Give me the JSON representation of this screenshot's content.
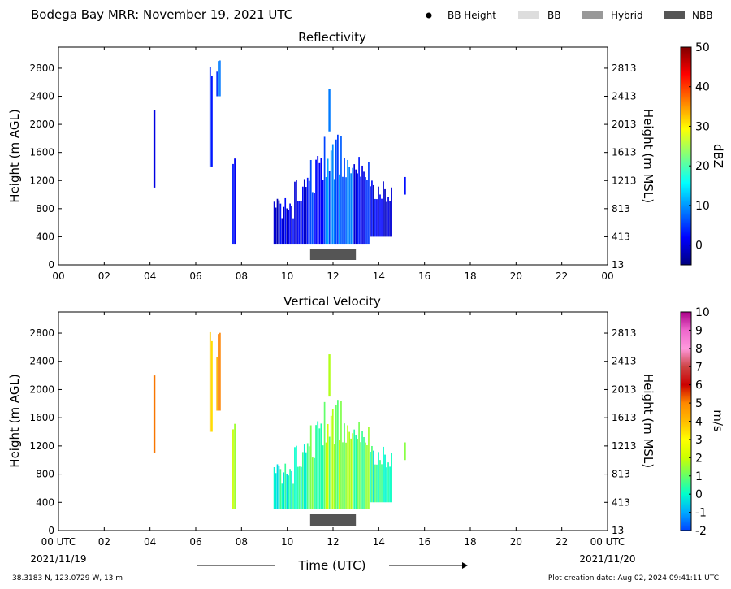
{
  "header": {
    "title": "Bodega Bay MRR:  November 19, 2021 UTC",
    "legend": [
      {
        "label": "BB Height",
        "kind": "dot",
        "color": "#000000"
      },
      {
        "label": "BB",
        "kind": "box",
        "color": "#dddddd"
      },
      {
        "label": "Hybrid",
        "kind": "box",
        "color": "#999999"
      },
      {
        "label": "NBB",
        "kind": "box",
        "color": "#555555"
      }
    ]
  },
  "footer": {
    "coords": "38.3183 N, 123.0729 W, 13 m",
    "created": "Plot creation date: Aug 02, 2024 09:41:11 UTC",
    "xlabel": "Time (UTC)",
    "date_start": "2021/11/19",
    "date_end": "2021/11/20"
  },
  "chart_data": [
    {
      "type": "heatmap",
      "title": "Reflectivity",
      "ylabel": "Height (m AGL)",
      "ylabel_right": "Height (m MSL)",
      "colorbar_label": "dBZ",
      "colorbar_ticks": [
        "50",
        "40",
        "30",
        "20",
        "10",
        "0"
      ],
      "colorbar_range": [
        -5,
        50
      ],
      "colorbar_colors": [
        "#00007f",
        "#0000ff",
        "#007fff",
        "#00ffff",
        "#7fff7f",
        "#ffff00",
        "#ff7f00",
        "#ff0000",
        "#7f0000"
      ],
      "x_ticks": [
        "00",
        "02",
        "04",
        "06",
        "08",
        "10",
        "12",
        "14",
        "16",
        "18",
        "20",
        "22",
        "00"
      ],
      "xlim": [
        0,
        24
      ],
      "y_ticks": [
        "0",
        "400",
        "800",
        "1200",
        "1600",
        "2000",
        "2400",
        "2800"
      ],
      "y_ticks_right": [
        "13",
        "413",
        "813",
        "1213",
        "1613",
        "2013",
        "2413",
        "2813"
      ],
      "ylim": [
        0,
        3100
      ],
      "nbb_segment": {
        "start": 11.0,
        "end": 13.0
      },
      "echoes": [
        {
          "t0": 4.15,
          "t1": 4.25,
          "h0": 1100,
          "h1": 2200,
          "value": 2
        },
        {
          "t0": 6.6,
          "t1": 6.75,
          "h0": 1400,
          "h1": 3000,
          "value": 3
        },
        {
          "t0": 6.9,
          "t1": 7.1,
          "h0": 2400,
          "h1": 3000,
          "value": 6
        },
        {
          "t0": 7.6,
          "t1": 7.75,
          "h0": 300,
          "h1": 1700,
          "value": 1
        },
        {
          "t0": 9.4,
          "t1": 10.3,
          "h0": 300,
          "h1": 950,
          "value": 0
        },
        {
          "t0": 10.3,
          "t1": 11.0,
          "h0": 300,
          "h1": 1250,
          "value": 1
        },
        {
          "t0": 11.0,
          "t1": 11.6,
          "h0": 300,
          "h1": 1600,
          "value": 4
        },
        {
          "t0": 11.6,
          "t1": 12.9,
          "h0": 300,
          "h1": 1900,
          "value": 8
        },
        {
          "t0": 11.8,
          "t1": 11.9,
          "h0": 1900,
          "h1": 2500,
          "value": 6
        },
        {
          "t0": 12.9,
          "t1": 13.6,
          "h0": 300,
          "h1": 1600,
          "value": 2
        },
        {
          "t0": 13.6,
          "t1": 14.6,
          "h0": 400,
          "h1": 1200,
          "value": 0
        },
        {
          "t0": 15.1,
          "t1": 15.2,
          "h0": 1000,
          "h1": 1250,
          "value": 1
        }
      ]
    },
    {
      "type": "heatmap",
      "title": "Vertical Velocity",
      "ylabel": "Height (m AGL)",
      "ylabel_right": "Height (m MSL)",
      "colorbar_label": "m/s",
      "colorbar_ticks": [
        "10",
        "9",
        "8",
        "7",
        "6",
        "5",
        "4",
        "3",
        "2",
        "1",
        "0",
        "-1",
        "-2"
      ],
      "colorbar_range": [
        -2,
        10
      ],
      "colorbar_colors": [
        "#0044ff",
        "#00aaff",
        "#00ffcc",
        "#66ff66",
        "#ccff00",
        "#ffff00",
        "#ffbb00",
        "#ff8800",
        "#cc0000",
        "#cc4444",
        "#ff99dd",
        "#ee66cc",
        "#aa0088"
      ],
      "x_ticks": [
        "00 UTC",
        "02",
        "04",
        "06",
        "08",
        "10",
        "12",
        "14",
        "16",
        "18",
        "20",
        "22",
        "00 UTC"
      ],
      "xlim": [
        0,
        24
      ],
      "y_ticks": [
        "0",
        "400",
        "800",
        "1200",
        "1600",
        "2000",
        "2400",
        "2800"
      ],
      "y_ticks_right": [
        "13",
        "413",
        "813",
        "1213",
        "1613",
        "2013",
        "2413",
        "2813"
      ],
      "ylim": [
        0,
        3100
      ],
      "nbb_segment": {
        "start": 11.0,
        "end": 13.0
      },
      "echoes": [
        {
          "t0": 4.15,
          "t1": 4.25,
          "h0": 1100,
          "h1": 2200,
          "value": 5.5
        },
        {
          "t0": 6.6,
          "t1": 6.75,
          "h0": 1400,
          "h1": 3000,
          "value": 3.5
        },
        {
          "t0": 6.9,
          "t1": 7.1,
          "h0": 1700,
          "h1": 3000,
          "value": 4.5
        },
        {
          "t0": 7.6,
          "t1": 7.75,
          "h0": 300,
          "h1": 1700,
          "value": 1.5
        },
        {
          "t0": 9.4,
          "t1": 10.3,
          "h0": 300,
          "h1": 950,
          "value": 0
        },
        {
          "t0": 10.3,
          "t1": 11.0,
          "h0": 300,
          "h1": 1250,
          "value": 0.3
        },
        {
          "t0": 11.0,
          "t1": 11.6,
          "h0": 300,
          "h1": 1600,
          "value": 0.8
        },
        {
          "t0": 11.6,
          "t1": 12.9,
          "h0": 300,
          "h1": 1900,
          "value": 1.5
        },
        {
          "t0": 11.8,
          "t1": 11.9,
          "h0": 1900,
          "h1": 2500,
          "value": 1.2
        },
        {
          "t0": 12.9,
          "t1": 13.6,
          "h0": 300,
          "h1": 1600,
          "value": 0.9
        },
        {
          "t0": 13.6,
          "t1": 14.6,
          "h0": 400,
          "h1": 1200,
          "value": 0.2
        },
        {
          "t0": 15.1,
          "t1": 15.2,
          "h0": 1000,
          "h1": 1250,
          "value": 1
        }
      ]
    }
  ]
}
